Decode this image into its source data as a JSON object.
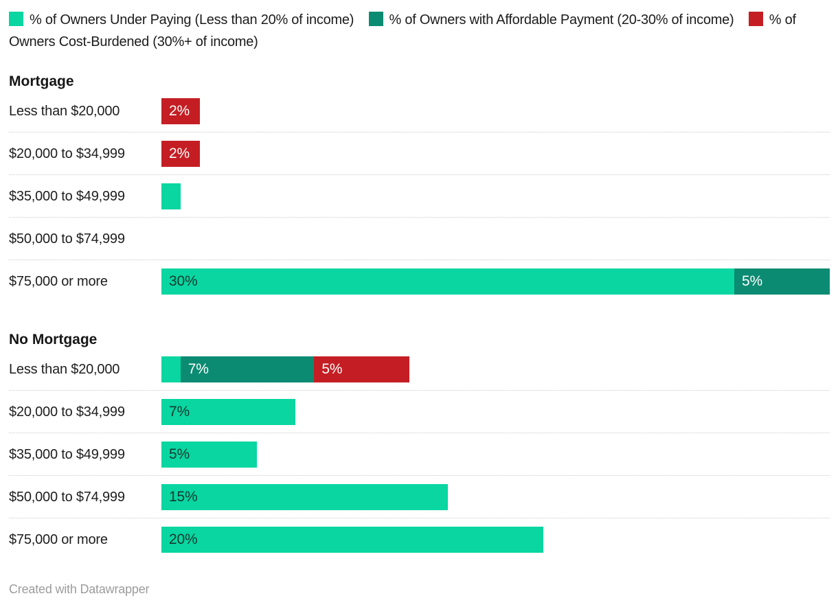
{
  "page": {
    "background": "#ffffff",
    "footer_text": "Created with Datawrapper"
  },
  "colors": {
    "under_paying": "#09d6a1",
    "affordable": "#0b8b72",
    "cost_burdened": "#c41e24",
    "bar_label_dark": "#14372e",
    "bar_label_light": "#ffffff",
    "text": "#1b1b1b",
    "footer_text_color": "#9c9c9c",
    "row_divider": "#c9c9c9"
  },
  "legend": {
    "items": [
      {
        "key": "under_paying",
        "label": "% of Owners Under Paying (Less than 20% of income)"
      },
      {
        "key": "affordable",
        "label": "% of Owners with Affordable Payment (20-30% of income)"
      },
      {
        "key": "cost_burdened",
        "label": "% of Owners Cost-Burdened (30%+ of income)"
      }
    ]
  },
  "chart_data": {
    "type": "bar",
    "variant": "stacked-horizontal",
    "unit": "%",
    "axis": {
      "xlim": [
        0,
        35
      ],
      "gridlines": false,
      "axis_labels_hidden": true
    },
    "legend_position": "top",
    "series": [
      "% of Owners Under Paying (Less than 20% of income)",
      "% of Owners with Affordable Payment (20-30% of income)",
      "% of Owners Cost-Burdened (30%+ of income)"
    ],
    "groups": [
      {
        "title": "Mortgage",
        "rows": [
          {
            "category": "Less than $20,000",
            "segments": [
              {
                "series_key": "cost_burdened",
                "value": 2,
                "label": "2%"
              }
            ]
          },
          {
            "category": "$20,000 to $34,999",
            "segments": [
              {
                "series_key": "cost_burdened",
                "value": 2,
                "label": "2%"
              }
            ]
          },
          {
            "category": "$35,000 to $49,999",
            "segments": [
              {
                "series_key": "under_paying",
                "value": 1,
                "label": ""
              }
            ]
          },
          {
            "category": "$50,000 to $74,999",
            "segments": []
          },
          {
            "category": "$75,000 or more",
            "segments": [
              {
                "series_key": "under_paying",
                "value": 30,
                "label": "30%"
              },
              {
                "series_key": "affordable",
                "value": 5,
                "label": "5%"
              }
            ]
          }
        ]
      },
      {
        "title": "No Mortgage",
        "rows": [
          {
            "category": "Less than $20,000",
            "segments": [
              {
                "series_key": "under_paying",
                "value": 1,
                "label": ""
              },
              {
                "series_key": "affordable",
                "value": 7,
                "label": "7%"
              },
              {
                "series_key": "cost_burdened",
                "value": 5,
                "label": "5%"
              }
            ]
          },
          {
            "category": "$20,000 to $34,999",
            "segments": [
              {
                "series_key": "under_paying",
                "value": 7,
                "label": "7%"
              }
            ]
          },
          {
            "category": "$35,000 to $49,999",
            "segments": [
              {
                "series_key": "under_paying",
                "value": 5,
                "label": "5%"
              }
            ]
          },
          {
            "category": "$50,000 to $74,999",
            "segments": [
              {
                "series_key": "under_paying",
                "value": 15,
                "label": "15%"
              }
            ]
          },
          {
            "category": "$75,000 or more",
            "segments": [
              {
                "series_key": "under_paying",
                "value": 20,
                "label": "20%"
              }
            ]
          }
        ]
      }
    ]
  }
}
